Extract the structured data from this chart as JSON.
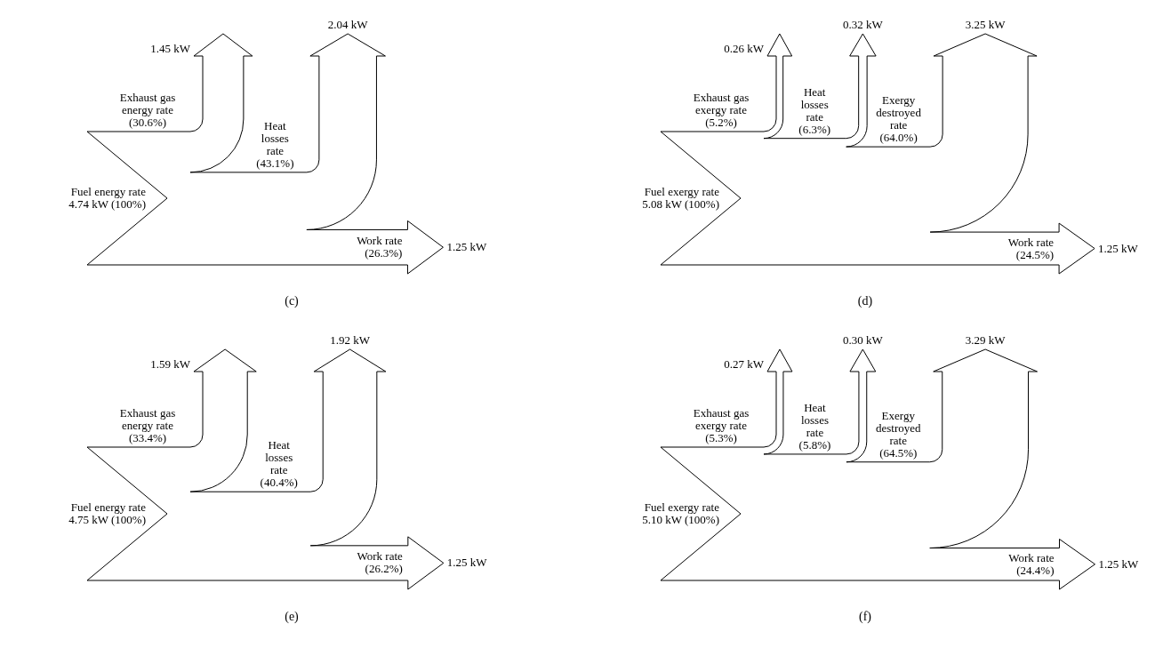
{
  "chart_data": [
    {
      "type": "other",
      "title": "(c)",
      "categories": [
        "Fuel energy rate",
        "Exhaust gas energy rate",
        "Heat losses rate",
        "Work rate"
      ],
      "values": [
        4.74,
        1.45,
        2.04,
        1.25
      ],
      "value_labels": [
        "4.74 kW (100%)",
        "1.45 kW",
        "2.04 kW",
        "1.25 kW"
      ],
      "annotations": [
        "(30.6%)",
        "(43.1%)",
        "(26.3%)"
      ]
    },
    {
      "type": "other",
      "title": "(d)",
      "categories": [
        "Fuel exergy rate",
        "Exhaust gas exergy rate",
        "Heat losses rate",
        "Exergy destroyed rate",
        "Work rate"
      ],
      "values": [
        5.08,
        0.26,
        0.32,
        3.25,
        1.25
      ],
      "value_labels": [
        "5.08 kW (100%)",
        "0.26 kW",
        "0.32 kW",
        "3.25 kW",
        "1.25 kW"
      ],
      "annotations": [
        "(5.2%)",
        "(6.3%)",
        "(64.0%)",
        "(24.5%)"
      ]
    },
    {
      "type": "other",
      "title": "(e)",
      "categories": [
        "Fuel energy rate",
        "Exhaust gas energy rate",
        "Heat losses rate",
        "Work rate"
      ],
      "values": [
        4.75,
        1.59,
        1.92,
        1.25
      ],
      "value_labels": [
        "4.75 kW (100%)",
        "1.59 kW",
        "1.92 kW",
        "1.25 kW"
      ],
      "annotations": [
        "(33.4%)",
        "(40.4%)",
        "(26.2%)"
      ]
    },
    {
      "type": "other",
      "title": "(f)",
      "categories": [
        "Fuel exergy rate",
        "Exhaust gas exergy rate",
        "Heat losses rate",
        "Exergy destroyed rate",
        "Work rate"
      ],
      "values": [
        5.1,
        0.27,
        0.3,
        3.29,
        1.25
      ],
      "value_labels": [
        "5.10 kW (100%)",
        "0.27 kW",
        "0.30 kW",
        "3.29 kW",
        "1.25 kW"
      ],
      "annotations": [
        "(5.3%)",
        "(5.8%)",
        "(64.5%)",
        "(24.4%)"
      ]
    }
  ]
}
